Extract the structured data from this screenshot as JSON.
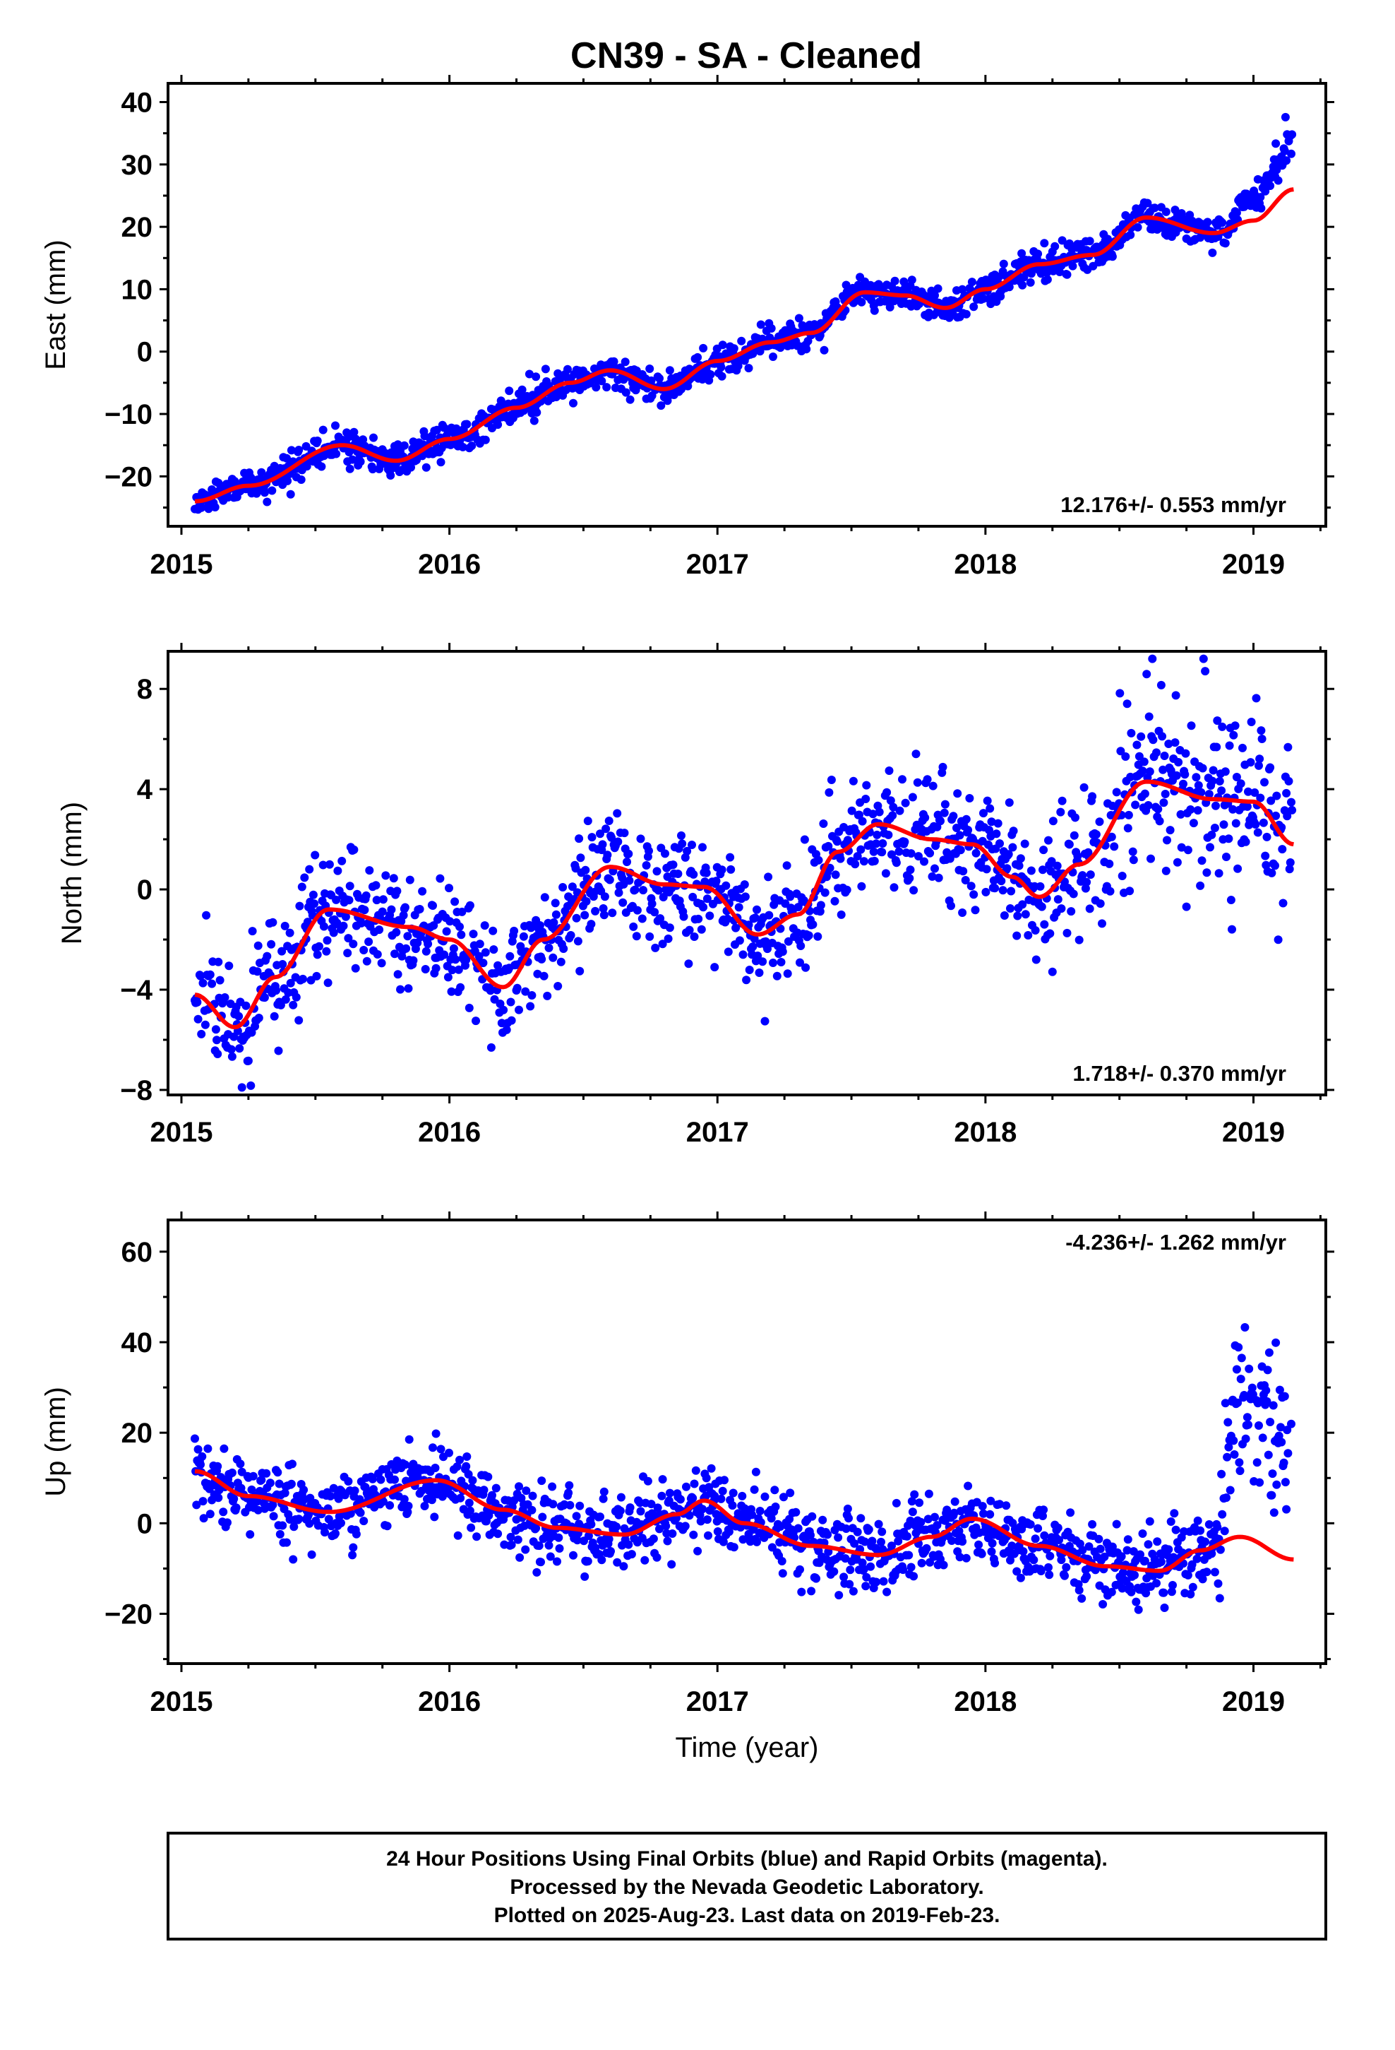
{
  "title": "CN39  - SA - Cleaned",
  "footer": {
    "lines": [
      "24 Hour Positions Using Final Orbits (blue) and Rapid Orbits (magenta).",
      "Processed by the Nevada Geodetic Laboratory.",
      "Plotted on 2025-Aug-23. Last data on 2019-Feb-23."
    ]
  },
  "colors": {
    "points": "#0000ff",
    "fit": "#ff0000",
    "frame": "#000000"
  },
  "chart_data": [
    {
      "type": "scatter",
      "component": "east",
      "ylabel": "East (mm)",
      "xlabel": "",
      "xlim": [
        2014.95,
        2019.27
      ],
      "ylim": [
        -28,
        43
      ],
      "xticks": [
        2015,
        2016,
        2017,
        2018,
        2019
      ],
      "yticks": [
        -20,
        -10,
        0,
        10,
        20,
        30,
        40
      ],
      "rate": "12.176+/- 0.553 mm/yr",
      "rate_position": "bottom-right",
      "series": [
        {
          "role": "daily positions (final orbits)",
          "points": "generated by the trend model below, ~1400 daily samples"
        },
        {
          "role": "seasonal fit",
          "x": [
            2015.05,
            2015.25,
            2015.6,
            2015.8,
            2016.0,
            2016.25,
            2016.45,
            2016.6,
            2016.8,
            2017.0,
            2017.2,
            2017.35,
            2017.55,
            2017.7,
            2017.85,
            2018.0,
            2018.2,
            2018.4,
            2018.6,
            2018.85,
            2019.0,
            2019.15
          ],
          "y": [
            -24,
            -21.5,
            -15,
            -17.5,
            -14,
            -9,
            -5,
            -3,
            -6,
            -1.5,
            1.5,
            3,
            9.5,
            9,
            7,
            10,
            14,
            15.5,
            21.5,
            19,
            21,
            26
          ]
        }
      ]
    },
    {
      "type": "scatter",
      "component": "north",
      "ylabel": "North (mm)",
      "xlabel": "",
      "xlim": [
        2014.95,
        2019.27
      ],
      "ylim": [
        -8.2,
        9.5
      ],
      "xticks": [
        2015,
        2016,
        2017,
        2018,
        2019
      ],
      "yticks": [
        -8,
        -4,
        0,
        4,
        8
      ],
      "rate": "1.718+/- 0.370 mm/yr",
      "rate_position": "bottom-right",
      "series": [
        {
          "role": "daily positions (final orbits)",
          "points": "generated by the trend model below, ~1400 daily samples"
        },
        {
          "role": "seasonal fit",
          "x": [
            2015.05,
            2015.2,
            2015.35,
            2015.55,
            2015.85,
            2016.0,
            2016.2,
            2016.35,
            2016.6,
            2016.8,
            2016.95,
            2017.15,
            2017.3,
            2017.45,
            2017.6,
            2017.8,
            2017.95,
            2018.1,
            2018.2,
            2018.35,
            2018.6,
            2018.85,
            2019.0,
            2019.15
          ],
          "y": [
            -4.2,
            -5.5,
            -3.5,
            -0.8,
            -1.5,
            -2,
            -3.9,
            -2,
            0.9,
            0.2,
            0.1,
            -1.8,
            -1,
            1.5,
            2.6,
            2,
            1.8,
            0.5,
            -0.3,
            1,
            4.3,
            3.6,
            3.5,
            1.8
          ]
        }
      ]
    },
    {
      "type": "scatter",
      "component": "up",
      "ylabel": "Up (mm)",
      "xlabel": "Time (year)",
      "xlim": [
        2014.95,
        2019.27
      ],
      "ylim": [
        -31,
        67
      ],
      "xticks": [
        2015,
        2016,
        2017,
        2018,
        2019
      ],
      "yticks": [
        -20,
        0,
        20,
        40,
        60
      ],
      "rate": "-4.236+/- 1.262 mm/yr",
      "rate_position": "top-right",
      "series": [
        {
          "role": "daily positions (final orbits)",
          "points": "generated by the trend model below, ~1400 daily samples"
        },
        {
          "role": "seasonal fit",
          "x": [
            2015.05,
            2015.25,
            2015.55,
            2015.95,
            2016.2,
            2016.4,
            2016.65,
            2016.85,
            2016.95,
            2017.1,
            2017.35,
            2017.6,
            2017.8,
            2017.95,
            2018.2,
            2018.45,
            2018.65,
            2018.8,
            2018.95,
            2019.15
          ],
          "y": [
            11.5,
            6,
            2.5,
            9.5,
            3,
            -1,
            -2.5,
            2,
            5,
            0,
            -5,
            -7,
            -3,
            1,
            -5,
            -9.5,
            -10.5,
            -6,
            -3,
            -8
          ]
        }
      ]
    }
  ]
}
